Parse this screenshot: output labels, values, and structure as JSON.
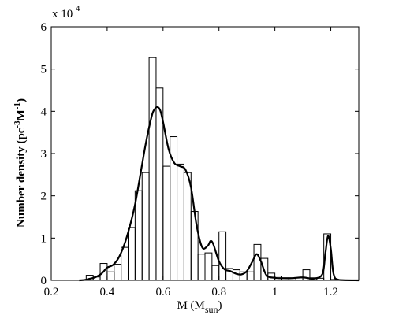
{
  "chart_data": {
    "type": "histogram-with-line",
    "xlim": [
      0.2,
      1.3
    ],
    "ylim": [
      0,
      6
    ],
    "x_ticks": [
      0.2,
      0.4,
      0.6,
      0.8,
      1,
      1.2
    ],
    "x_tick_labels": [
      "0.2",
      "0.4",
      "0.6",
      "0.8",
      "1",
      "1.2"
    ],
    "y_ticks": [
      0,
      1,
      2,
      3,
      4,
      5,
      6
    ],
    "y_tick_labels": [
      "0",
      "1",
      "2",
      "3",
      "4",
      "5",
      "6"
    ],
    "y_exponent_prefix": "x 10",
    "y_exponent_power": "-4",
    "xlabel_main": "M (M",
    "xlabel_sub": "sun",
    "xlabel_close": ")",
    "ylabel_main": "Number density (pc",
    "ylabel_sup1": "-3",
    "ylabel_mid": "M",
    "ylabel_sup2": "-1",
    "ylabel_close": ")",
    "grid": false,
    "histogram": {
      "bin_width": 0.025,
      "bins": [
        {
          "x0": 0.325,
          "value": 0.12
        },
        {
          "x0": 0.35,
          "value": 0.08
        },
        {
          "x0": 0.375,
          "value": 0.4
        },
        {
          "x0": 0.4,
          "value": 0.2
        },
        {
          "x0": 0.425,
          "value": 0.38
        },
        {
          "x0": 0.45,
          "value": 0.78
        },
        {
          "x0": 0.475,
          "value": 1.25
        },
        {
          "x0": 0.5,
          "value": 2.12
        },
        {
          "x0": 0.525,
          "value": 2.55
        },
        {
          "x0": 0.55,
          "value": 5.27
        },
        {
          "x0": 0.575,
          "value": 4.55
        },
        {
          "x0": 0.6,
          "value": 2.7
        },
        {
          "x0": 0.625,
          "value": 3.4
        },
        {
          "x0": 0.65,
          "value": 2.75
        },
        {
          "x0": 0.675,
          "value": 2.55
        },
        {
          "x0": 0.7,
          "value": 1.63
        },
        {
          "x0": 0.725,
          "value": 0.62
        },
        {
          "x0": 0.75,
          "value": 0.65
        },
        {
          "x0": 0.775,
          "value": 0.35
        },
        {
          "x0": 0.8,
          "value": 1.15
        },
        {
          "x0": 0.825,
          "value": 0.28
        },
        {
          "x0": 0.85,
          "value": 0.25
        },
        {
          "x0": 0.875,
          "value": 0.2
        },
        {
          "x0": 0.9,
          "value": 0.2
        },
        {
          "x0": 0.925,
          "value": 0.85
        },
        {
          "x0": 0.95,
          "value": 0.52
        },
        {
          "x0": 0.975,
          "value": 0.17
        },
        {
          "x0": 1.0,
          "value": 0.1
        },
        {
          "x0": 1.025,
          "value": 0.06
        },
        {
          "x0": 1.05,
          "value": 0.06
        },
        {
          "x0": 1.075,
          "value": 0.06
        },
        {
          "x0": 1.1,
          "value": 0.25
        },
        {
          "x0": 1.125,
          "value": 0.06
        },
        {
          "x0": 1.15,
          "value": 0.05
        },
        {
          "x0": 1.175,
          "value": 1.1
        },
        {
          "x0": 1.2,
          "value": 0.02
        }
      ]
    },
    "smooth_curve": {
      "x": [
        0.3,
        0.32,
        0.34,
        0.36,
        0.38,
        0.4,
        0.42,
        0.44,
        0.46,
        0.48,
        0.5,
        0.52,
        0.54,
        0.56,
        0.57,
        0.58,
        0.59,
        0.6,
        0.62,
        0.64,
        0.66,
        0.68,
        0.7,
        0.72,
        0.74,
        0.76,
        0.77,
        0.78,
        0.8,
        0.82,
        0.84,
        0.86,
        0.88,
        0.9,
        0.92,
        0.935,
        0.95,
        0.97,
        1.0,
        1.03,
        1.06,
        1.1,
        1.14,
        1.17,
        1.18,
        1.19,
        1.2,
        1.21,
        1.23,
        1.3
      ],
      "y": [
        0.0,
        0.01,
        0.04,
        0.08,
        0.16,
        0.3,
        0.36,
        0.52,
        0.82,
        1.25,
        1.8,
        2.55,
        3.3,
        3.9,
        4.05,
        4.1,
        4.02,
        3.75,
        3.1,
        2.78,
        2.7,
        2.62,
        2.2,
        1.3,
        0.78,
        0.82,
        0.93,
        0.85,
        0.45,
        0.26,
        0.22,
        0.16,
        0.14,
        0.22,
        0.45,
        0.62,
        0.45,
        0.12,
        0.06,
        0.05,
        0.05,
        0.07,
        0.04,
        0.15,
        0.6,
        1.05,
        0.75,
        0.15,
        0.01,
        0.0
      ]
    }
  }
}
